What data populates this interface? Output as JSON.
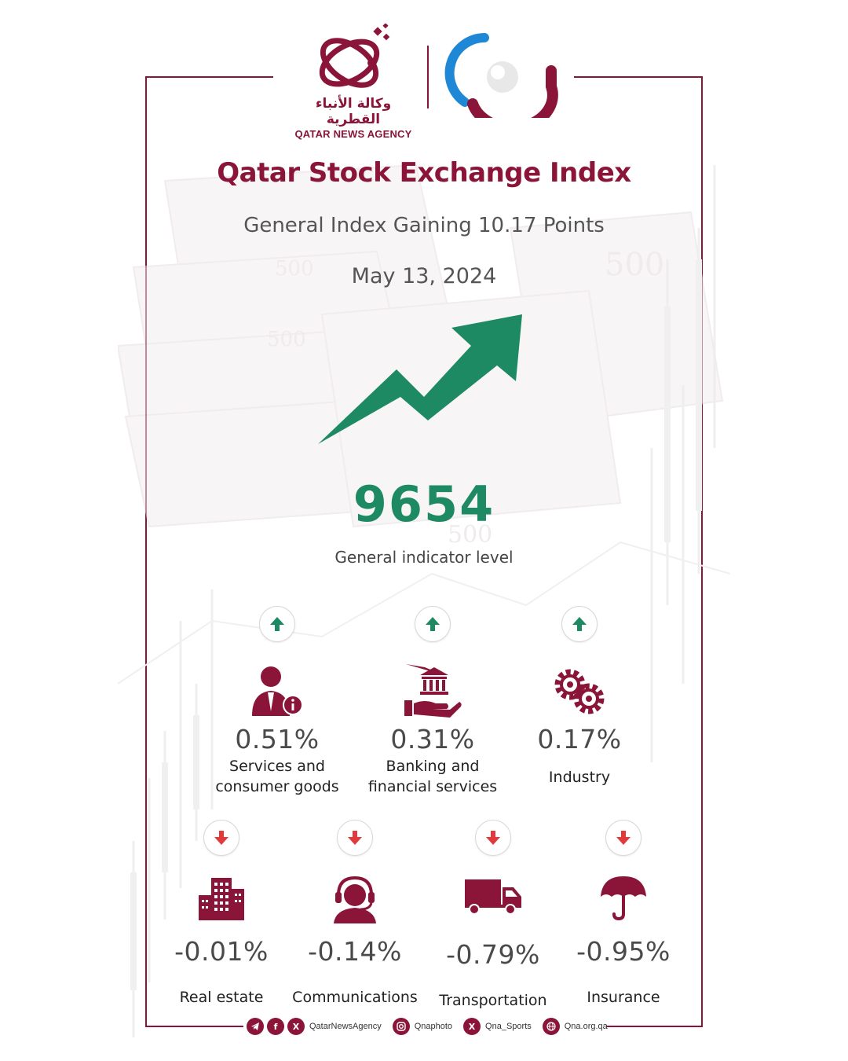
{
  "brand": {
    "agency_name_ar": "وكالة الأنباء القطرية",
    "agency_name_en": "QATAR NEWS AGENCY",
    "primary_color": "#8a1538",
    "up_color": "#1e8a63",
    "down_color": "#e23a3a"
  },
  "header": {
    "title": "Qatar Stock Exchange Index",
    "subtitle": "General Index Gaining 10.17 Points",
    "date": "May 13, 2024"
  },
  "index": {
    "value": "9654",
    "label": "General indicator level",
    "trend_icon": "trend-up-arrow-icon"
  },
  "sectors_up": [
    {
      "icon": "customer-service-person-icon",
      "direction": "up",
      "change": "0.51%",
      "name": "Services and\nconsumer goods"
    },
    {
      "icon": "bank-hand-icon",
      "direction": "up",
      "change": "0.31%",
      "name": "Banking and\nfinancial services"
    },
    {
      "icon": "gears-icon",
      "direction": "up",
      "change": "0.17%",
      "name": "Industry"
    }
  ],
  "sectors_down": [
    {
      "icon": "buildings-icon",
      "direction": "down",
      "change": "-0.01%",
      "name": "Real estate"
    },
    {
      "icon": "headset-agent-icon",
      "direction": "down",
      "change": "-0.14%",
      "name": "Communications"
    },
    {
      "icon": "truck-icon",
      "direction": "down",
      "change": "-0.79%",
      "name": "Transportation"
    },
    {
      "icon": "umbrella-icon",
      "direction": "down",
      "change": "-0.95%",
      "name": "Insurance"
    }
  ],
  "footer": {
    "handle_main": "QatarNewsAgency",
    "handle_photo": "Qnaphoto",
    "handle_sports": "Qna_Sports",
    "website": "Qna.org.qa"
  }
}
